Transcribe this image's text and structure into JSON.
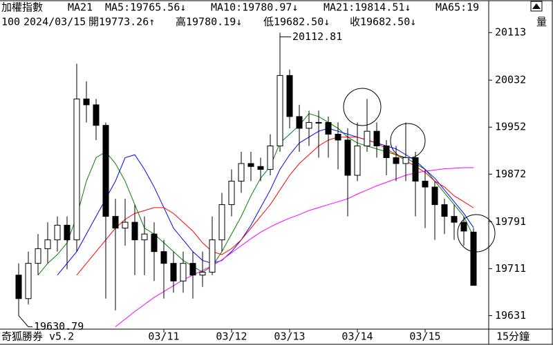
{
  "header": {
    "symbol": "加權指數",
    "indicator": "MA21",
    "info": [
      "100",
      "2024/03/15",
      "開19773.26↑",
      "高19780.19↓",
      "低19682.50↓",
      "收19682.50↓",
      "量"
    ]
  },
  "footer": {
    "app": "奇狐勝券 v5.2",
    "period": "15分鐘"
  },
  "chart_data": {
    "type": "candlestick",
    "categories": [
      null,
      null,
      null,
      null,
      null,
      null,
      null,
      null,
      null,
      null,
      null,
      null,
      null,
      null,
      null,
      "03/11",
      null,
      null,
      null,
      null,
      null,
      null,
      "03/12",
      null,
      null,
      null,
      null,
      null,
      "03/13",
      null,
      null,
      null,
      null,
      null,
      null,
      "03/14",
      null,
      null,
      null,
      null,
      null,
      null,
      "03/15",
      null,
      null,
      null,
      null,
      null
    ],
    "open": [
      19700,
      19660,
      19720,
      19745,
      19760,
      19785,
      19760,
      20000,
      19990,
      19955,
      19800,
      19780,
      19790,
      19760,
      19770,
      19740,
      19720,
      19690,
      19720,
      19700,
      19705,
      19760,
      19820,
      19860,
      19890,
      19885,
      19880,
      19920,
      20040,
      19970,
      19950,
      19960,
      19960,
      19940,
      19930,
      19870,
      19920,
      19945,
      19920,
      19900,
      19890,
      19900,
      19860,
      19850,
      19820,
      19800,
      19790,
      19773.26
    ],
    "high": [
      19720,
      19740,
      19770,
      19790,
      19800,
      19800,
      20060,
      20030,
      20000,
      19960,
      19830,
      19830,
      19820,
      19800,
      19790,
      19760,
      19740,
      19740,
      19740,
      19740,
      19800,
      19840,
      19880,
      19910,
      19910,
      19900,
      19940,
      20112.81,
      20050,
      19990,
      19980,
      19980,
      19970,
      19960,
      19950,
      19960,
      20000,
      19960,
      19930,
      19920,
      19960,
      19910,
      19880,
      19860,
      19830,
      19820,
      19800,
      19780.19
    ],
    "low": [
      19630.79,
      19650,
      19700,
      19720,
      19740,
      19710,
      19740,
      19960,
      19930,
      19660,
      19640,
      19750,
      19700,
      19700,
      19690,
      19660,
      19670,
      19670,
      19660,
      19680,
      19700,
      19740,
      19800,
      19840,
      19860,
      19860,
      19870,
      19910,
      19950,
      19910,
      19920,
      19900,
      19900,
      19880,
      19800,
      19860,
      19910,
      19900,
      19870,
      19860,
      19860,
      19800,
      19780,
      19760,
      19770,
      19760,
      19750,
      19682.5
    ],
    "close": [
      19660,
      19720,
      19745,
      19760,
      19785,
      19760,
      20000,
      19990,
      19955,
      19800,
      19780,
      19790,
      19760,
      19770,
      19740,
      19720,
      19690,
      19720,
      19700,
      19705,
      19760,
      19820,
      19860,
      19890,
      19885,
      19880,
      19920,
      20040,
      19970,
      19950,
      19960,
      19960,
      19940,
      19930,
      19870,
      19920,
      19945,
      19920,
      19900,
      19890,
      19900,
      19860,
      19850,
      19820,
      19800,
      19790,
      19775,
      19682.5
    ],
    "up_color": "#ffffff",
    "down_color": "#000000",
    "outline_color": "#000000",
    "series": [
      {
        "name": "MA5:19765.56↓",
        "color": "#008000",
        "values": [
          null,
          null,
          19700,
          19720,
          19735,
          19755,
          19800,
          19860,
          19900,
          19910,
          19890,
          19860,
          19820,
          19780,
          19770,
          19755,
          19740,
          19725,
          19715,
          19705,
          19715,
          19740,
          19770,
          19800,
          19835,
          19865,
          19885,
          19925,
          19940,
          19955,
          19975,
          19970,
          19960,
          19950,
          19935,
          19925,
          19920,
          19915,
          19910,
          19905,
          19900,
          19890,
          19880,
          19860,
          19840,
          19820,
          19800,
          19765.56
        ]
      },
      {
        "name": "MA10:19780.97↓",
        "color": "#0000ff",
        "values": [
          null,
          null,
          null,
          null,
          19700,
          19720,
          19740,
          19770,
          19800,
          19830,
          19860,
          19900,
          19905,
          19880,
          19850,
          19815,
          19780,
          19760,
          19740,
          19725,
          19720,
          19725,
          19740,
          19760,
          19785,
          19815,
          19845,
          19880,
          19905,
          19925,
          19935,
          19945,
          19950,
          19945,
          19940,
          19935,
          19930,
          19925,
          19920,
          19915,
          19905,
          19895,
          19880,
          19865,
          19845,
          19825,
          19805,
          19780.97
        ]
      },
      {
        "name": "MA21:19814.51↓",
        "color": "#ff0000",
        "values": [
          null,
          null,
          null,
          null,
          null,
          null,
          19700,
          19720,
          19740,
          19760,
          19780,
          19795,
          19805,
          19810,
          19815,
          19815,
          19805,
          19790,
          19775,
          19755,
          19740,
          19735,
          19745,
          19760,
          19780,
          19800,
          19820,
          19845,
          19870,
          19890,
          19905,
          19920,
          19930,
          19935,
          19935,
          19935,
          19930,
          19925,
          19915,
          19905,
          19895,
          19885,
          19875,
          19860,
          19850,
          19835,
          19825,
          19814.51
        ]
      },
      {
        "name": "MA65:19",
        "color": "#ff00ff",
        "values": [
          null,
          null,
          null,
          null,
          null,
          null,
          null,
          null,
          null,
          null,
          19612,
          19625,
          19638,
          19650,
          19662,
          19672,
          19682,
          19692,
          19700,
          19708,
          19716,
          19726,
          19738,
          19750,
          19762,
          19773,
          19782,
          19790,
          19797,
          19803,
          19810,
          19815,
          19820,
          19825,
          19830,
          19838,
          19845,
          19852,
          19858,
          19864,
          19870,
          19874,
          19877,
          19879,
          19881,
          19882,
          19883,
          19883
        ]
      }
    ],
    "ylim": [
      19608,
      20145
    ],
    "yticks": [
      19631,
      19711,
      19791,
      19872,
      19952,
      20032,
      20113
    ]
  }
}
